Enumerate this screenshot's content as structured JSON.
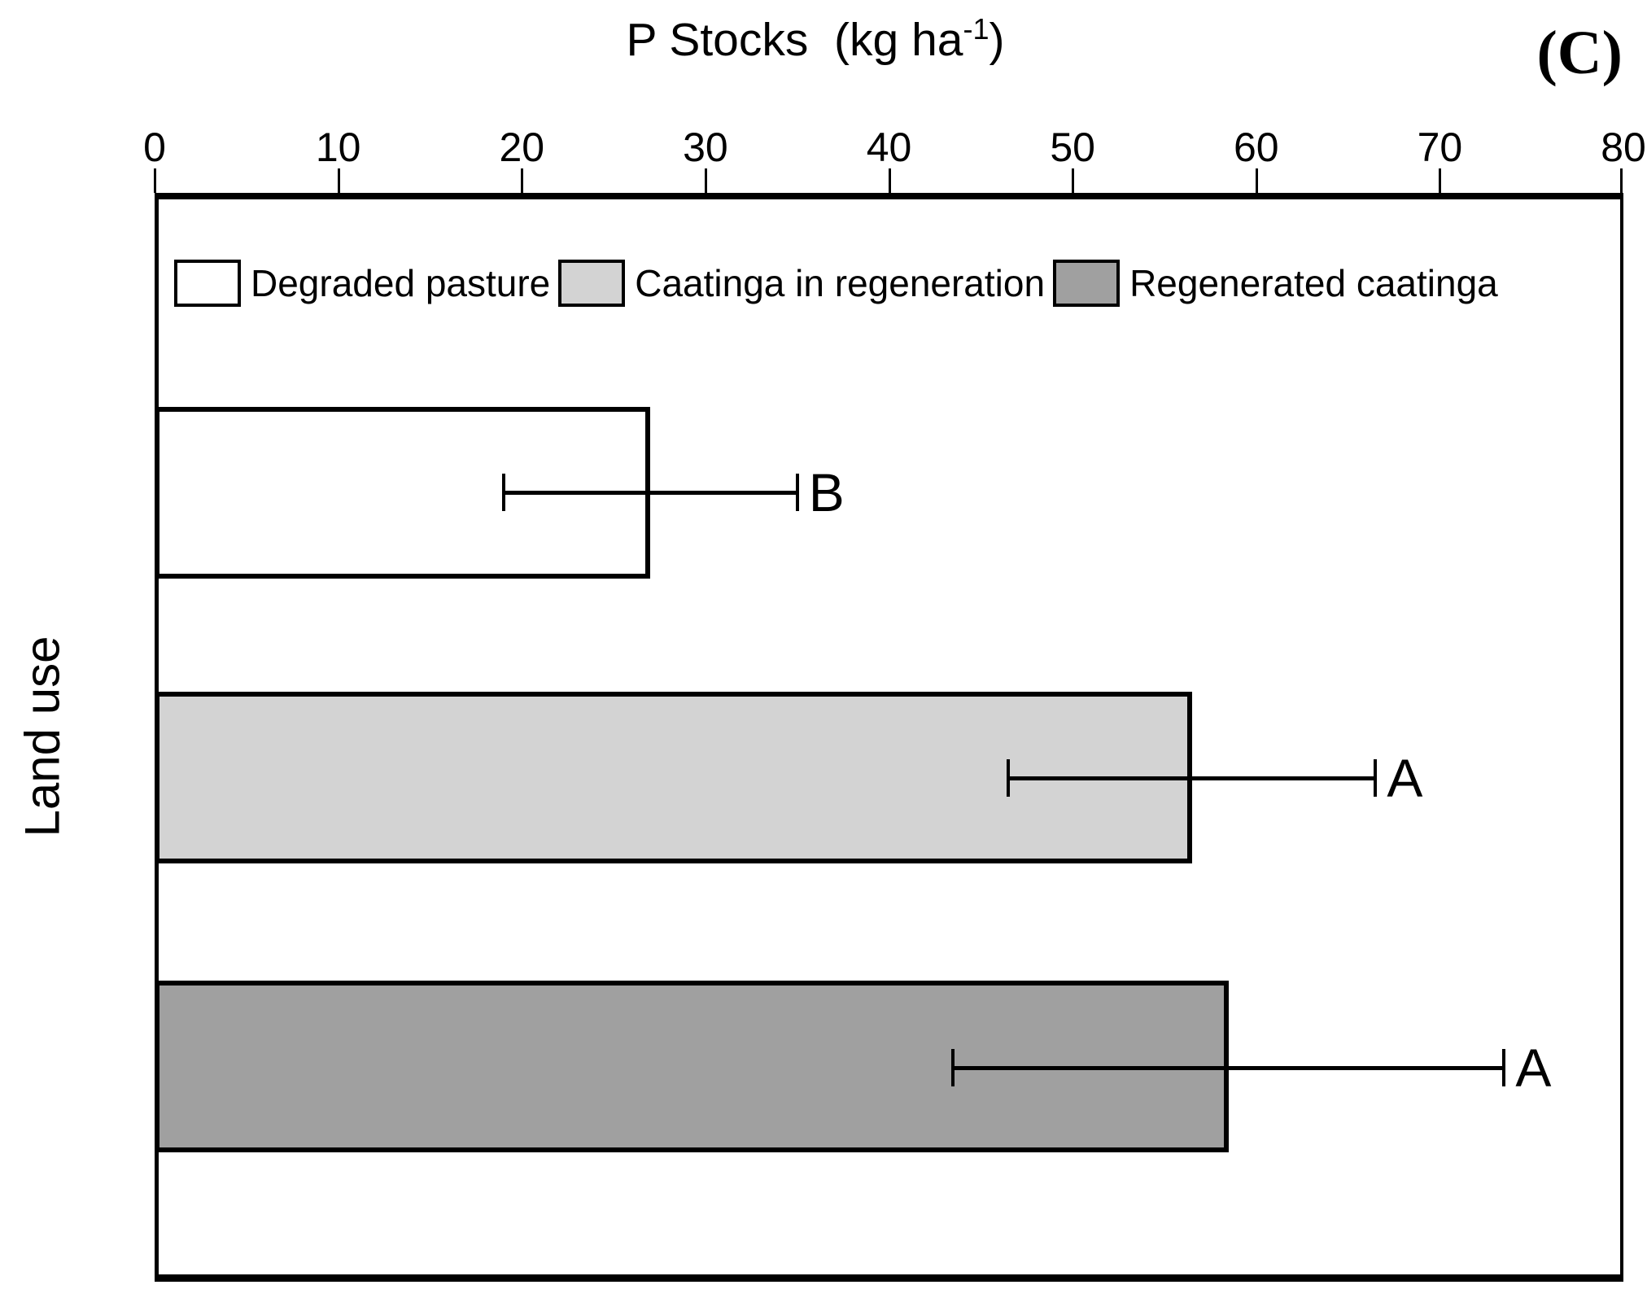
{
  "chart_data": {
    "type": "bar",
    "orientation": "horizontal",
    "title": "P Stocks  (kg ha⁻¹)",
    "title_parts": {
      "prefix": "P Stocks  (kg ha",
      "sup": "-1",
      "suffix": ")"
    },
    "panel_label": "(C)",
    "ylabel": "Land use",
    "xlabel": "P Stocks  (kg ha⁻¹)",
    "xlim": [
      0,
      80
    ],
    "xticks": [
      "0",
      "10",
      "20",
      "30",
      "40",
      "50",
      "60",
      "70",
      "80"
    ],
    "grid": false,
    "legend_position": "top-inside",
    "categories": [
      "Degraded pasture",
      "Caatinga in regeneration",
      "Regenerated caatinga"
    ],
    "values": [
      27,
      56.5,
      58.5
    ],
    "errors": [
      8,
      10,
      15
    ],
    "sig_letters": [
      "B",
      "A",
      "A"
    ],
    "bar_colors": [
      "#ffffff",
      "#d3d3d3",
      "#a0a0a0"
    ]
  },
  "colors": {
    "axis": "#000000",
    "background": "#ffffff",
    "bar_outline": "#000000"
  }
}
